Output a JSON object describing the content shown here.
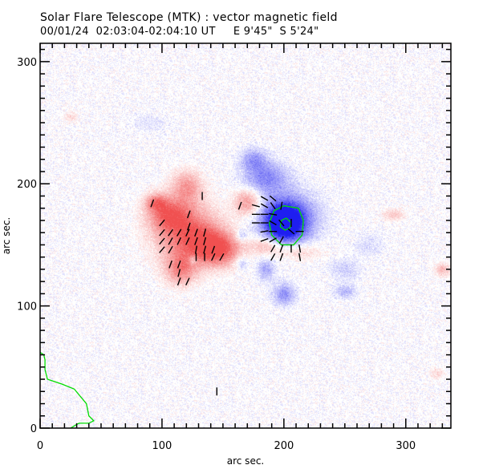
{
  "header": {
    "title": "Solar Flare Telescope (MTK) : vector magnetic field",
    "subtitle": "00/01/24  02:03:04-02:04:10 UT     E 9'45\"  S 5'24\""
  },
  "chart_data": {
    "type": "heatmap",
    "title": "Solar Flare Telescope (MTK) : vector magnetic field",
    "subtitle": "00/01/24  02:03:04-02:04:10 UT     E 9'45\"  S 5'24\"",
    "xlabel": "arc sec.",
    "ylabel": "arc sec.",
    "xlim": [
      0,
      337
    ],
    "ylim": [
      0,
      315
    ],
    "xticks": [
      0,
      100,
      200,
      300
    ],
    "yticks": [
      0,
      100,
      200,
      300
    ],
    "xtick_labels": [
      "0",
      "100",
      "200",
      "300"
    ],
    "ytick_labels": [
      "0",
      "100",
      "200",
      "300"
    ],
    "minor_tick_step": 10,
    "colors": {
      "positive_polarity": "#f04040",
      "negative_polarity": "#2020f0",
      "contour": "#00dd00",
      "vectors": "#000000"
    },
    "positive_regions": [
      {
        "x": 120,
        "y": 160,
        "rx": 28,
        "ry": 26,
        "strength": 0.75
      },
      {
        "x": 105,
        "y": 175,
        "rx": 18,
        "ry": 14,
        "strength": 0.6
      },
      {
        "x": 140,
        "y": 150,
        "rx": 20,
        "ry": 16,
        "strength": 0.6
      },
      {
        "x": 120,
        "y": 198,
        "rx": 14,
        "ry": 14,
        "strength": 0.5
      },
      {
        "x": 95,
        "y": 185,
        "rx": 10,
        "ry": 8,
        "strength": 0.55
      },
      {
        "x": 115,
        "y": 130,
        "rx": 14,
        "ry": 14,
        "strength": 0.55
      },
      {
        "x": 150,
        "y": 145,
        "rx": 18,
        "ry": 14,
        "strength": 0.45
      },
      {
        "x": 170,
        "y": 185,
        "rx": 12,
        "ry": 12,
        "strength": 0.55
      },
      {
        "x": 185,
        "y": 150,
        "rx": 14,
        "ry": 8,
        "strength": 0.4
      },
      {
        "x": 210,
        "y": 145,
        "rx": 22,
        "ry": 8,
        "strength": 0.3
      },
      {
        "x": 330,
        "y": 130,
        "rx": 7,
        "ry": 6,
        "strength": 0.35
      },
      {
        "x": 290,
        "y": 175,
        "rx": 10,
        "ry": 5,
        "strength": 0.3
      },
      {
        "x": 25,
        "y": 255,
        "rx": 6,
        "ry": 5,
        "strength": 0.2
      },
      {
        "x": 325,
        "y": 45,
        "rx": 6,
        "ry": 5,
        "strength": 0.22
      }
    ],
    "negative_regions": [
      {
        "x": 200,
        "y": 168,
        "rx": 16,
        "ry": 16,
        "strength": 1.0
      },
      {
        "x": 203,
        "y": 172,
        "rx": 26,
        "ry": 22,
        "strength": 0.7
      },
      {
        "x": 185,
        "y": 205,
        "rx": 20,
        "ry": 14,
        "strength": 0.5
      },
      {
        "x": 175,
        "y": 220,
        "rx": 12,
        "ry": 10,
        "strength": 0.4
      },
      {
        "x": 200,
        "y": 110,
        "rx": 10,
        "ry": 10,
        "strength": 0.45
      },
      {
        "x": 185,
        "y": 130,
        "rx": 8,
        "ry": 10,
        "strength": 0.35
      },
      {
        "x": 165,
        "y": 135,
        "rx": 6,
        "ry": 6,
        "strength": 0.3
      },
      {
        "x": 250,
        "y": 112,
        "rx": 10,
        "ry": 6,
        "strength": 0.3
      },
      {
        "x": 165,
        "y": 158,
        "rx": 5,
        "ry": 5,
        "strength": 0.3
      },
      {
        "x": 125,
        "y": 138,
        "rx": 4,
        "ry": 4,
        "strength": 0.35
      },
      {
        "x": 270,
        "y": 150,
        "rx": 14,
        "ry": 10,
        "strength": 0.15
      },
      {
        "x": 90,
        "y": 250,
        "rx": 20,
        "ry": 10,
        "strength": 0.1
      },
      {
        "x": 250,
        "y": 130,
        "rx": 14,
        "ry": 10,
        "strength": 0.2
      }
    ],
    "contours": [
      {
        "name": "umbra-outer",
        "points": [
          [
            200,
            182
          ],
          [
            212,
            180
          ],
          [
            216,
            170
          ],
          [
            215,
            158
          ],
          [
            208,
            150
          ],
          [
            198,
            150
          ],
          [
            190,
            158
          ],
          [
            188,
            168
          ],
          [
            192,
            178
          ],
          [
            200,
            182
          ]
        ]
      },
      {
        "name": "umbra-inner",
        "points": [
          [
            202,
            172
          ],
          [
            206,
            168
          ],
          [
            205,
            164
          ],
          [
            201,
            162
          ],
          [
            197,
            165
          ],
          [
            198,
            170
          ],
          [
            202,
            172
          ]
        ]
      },
      {
        "name": "limb",
        "points": [
          [
            0,
            62
          ],
          [
            3,
            60
          ],
          [
            4,
            56
          ],
          [
            4,
            48
          ],
          [
            6,
            40
          ],
          [
            18,
            36
          ],
          [
            28,
            32
          ],
          [
            38,
            20
          ],
          [
            40,
            10
          ],
          [
            44,
            6
          ],
          [
            40,
            4
          ],
          [
            32,
            4
          ],
          [
            30,
            3
          ],
          [
            25,
            0
          ]
        ]
      }
    ],
    "vectors": [
      {
        "x": 92,
        "y": 184,
        "angle": 70
      },
      {
        "x": 133,
        "y": 190,
        "angle": 90
      },
      {
        "x": 164,
        "y": 182,
        "angle": 70
      },
      {
        "x": 122,
        "y": 175,
        "angle": 70
      },
      {
        "x": 100,
        "y": 168,
        "angle": 50
      },
      {
        "x": 122,
        "y": 165,
        "angle": 70
      },
      {
        "x": 100,
        "y": 160,
        "angle": 50
      },
      {
        "x": 107,
        "y": 160,
        "angle": 55
      },
      {
        "x": 114,
        "y": 160,
        "angle": 60
      },
      {
        "x": 121,
        "y": 160,
        "angle": 65
      },
      {
        "x": 128,
        "y": 160,
        "angle": 70
      },
      {
        "x": 135,
        "y": 160,
        "angle": 75
      },
      {
        "x": 100,
        "y": 153,
        "angle": 50
      },
      {
        "x": 107,
        "y": 153,
        "angle": 60
      },
      {
        "x": 114,
        "y": 153,
        "angle": 65
      },
      {
        "x": 121,
        "y": 153,
        "angle": 65
      },
      {
        "x": 128,
        "y": 153,
        "angle": 70
      },
      {
        "x": 135,
        "y": 153,
        "angle": 75
      },
      {
        "x": 100,
        "y": 146,
        "angle": 50
      },
      {
        "x": 107,
        "y": 146,
        "angle": 60
      },
      {
        "x": 128,
        "y": 146,
        "angle": 80
      },
      {
        "x": 135,
        "y": 146,
        "angle": 75
      },
      {
        "x": 142,
        "y": 146,
        "angle": 70
      },
      {
        "x": 128,
        "y": 140,
        "angle": 90
      },
      {
        "x": 135,
        "y": 140,
        "angle": 90
      },
      {
        "x": 142,
        "y": 140,
        "angle": 65
      },
      {
        "x": 149,
        "y": 140,
        "angle": 60
      },
      {
        "x": 107,
        "y": 134,
        "angle": 70
      },
      {
        "x": 114,
        "y": 134,
        "angle": 70
      },
      {
        "x": 114,
        "y": 127,
        "angle": 75
      },
      {
        "x": 114,
        "y": 120,
        "angle": 70
      },
      {
        "x": 121,
        "y": 120,
        "angle": 65
      },
      {
        "x": 184,
        "y": 188,
        "angle": -30
      },
      {
        "x": 191,
        "y": 188,
        "angle": -40
      },
      {
        "x": 177,
        "y": 182,
        "angle": -15
      },
      {
        "x": 184,
        "y": 182,
        "angle": -30
      },
      {
        "x": 191,
        "y": 182,
        "angle": -55
      },
      {
        "x": 198,
        "y": 182,
        "angle": 80
      },
      {
        "x": 177,
        "y": 175,
        "angle": 0
      },
      {
        "x": 184,
        "y": 175,
        "angle": 0
      },
      {
        "x": 191,
        "y": 175,
        "angle": -10
      },
      {
        "x": 177,
        "y": 168,
        "angle": 0
      },
      {
        "x": 184,
        "y": 168,
        "angle": 0
      },
      {
        "x": 191,
        "y": 168,
        "angle": -30
      },
      {
        "x": 198,
        "y": 168,
        "angle": -50
      },
      {
        "x": 206,
        "y": 168,
        "angle": 90
      },
      {
        "x": 184,
        "y": 161,
        "angle": 10
      },
      {
        "x": 191,
        "y": 161,
        "angle": 0
      },
      {
        "x": 206,
        "y": 161,
        "angle": -40
      },
      {
        "x": 213,
        "y": 161,
        "angle": 0
      },
      {
        "x": 184,
        "y": 154,
        "angle": 20
      },
      {
        "x": 191,
        "y": 154,
        "angle": 30
      },
      {
        "x": 198,
        "y": 154,
        "angle": 60
      },
      {
        "x": 191,
        "y": 147,
        "angle": 60
      },
      {
        "x": 198,
        "y": 147,
        "angle": 70
      },
      {
        "x": 206,
        "y": 147,
        "angle": 90
      },
      {
        "x": 213,
        "y": 147,
        "angle": 100
      },
      {
        "x": 191,
        "y": 140,
        "angle": 60
      },
      {
        "x": 198,
        "y": 140,
        "angle": 70
      },
      {
        "x": 213,
        "y": 140,
        "angle": 100
      },
      {
        "x": 145,
        "y": 30,
        "angle": 90
      }
    ]
  }
}
